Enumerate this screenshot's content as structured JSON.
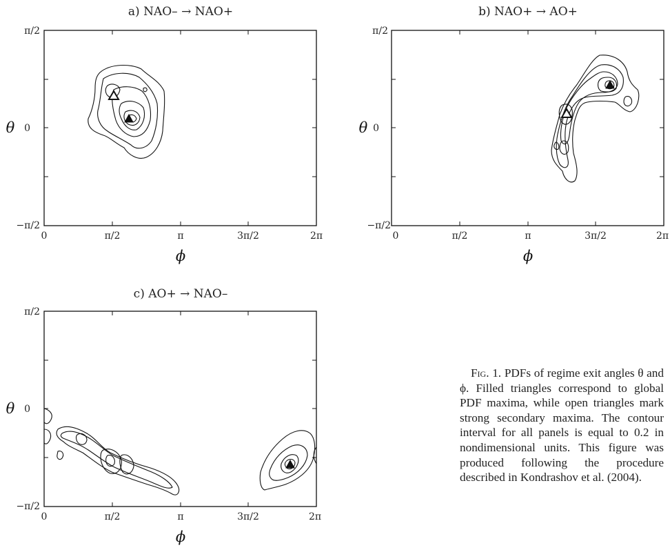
{
  "figure": {
    "panels": [
      {
        "title": "a)  NAO–  →  NAO+",
        "xlabel": "ϕ",
        "ylabel": "θ",
        "xticklabels": [
          "0",
          "π/2",
          "π",
          "3π/2",
          "2π"
        ],
        "yticklabels": [
          "π/2",
          "0",
          "−π/2"
        ]
      },
      {
        "title": "b)  NAO+  →  AO+",
        "xlabel": "ϕ",
        "ylabel": "θ",
        "xticklabels": [
          "0",
          "π/2",
          "π",
          "3π/2",
          "2π"
        ],
        "yticklabels": [
          "π/2",
          "0",
          "−π/2"
        ]
      },
      {
        "title": "c)  AO+  →  NAO–",
        "xlabel": "ϕ",
        "ylabel": "θ",
        "xticklabels": [
          "0",
          "π/2",
          "π",
          "3π/2",
          "2π"
        ],
        "yticklabels": [
          "π/2",
          "0",
          "−π/2"
        ]
      }
    ],
    "caption": {
      "label": "Fig. 1.",
      "text": "PDFs of regime exit angles θ and ϕ. Filled triangles correspond to global PDF maxima, while open triangles mark strong secondary maxima. The contour interval for all panels is equal to 0.2 in nondimensional units. This figure was produced following the procedure described in Kondrashov et al. (2004)."
    }
  },
  "chart_data": [
    {
      "type": "contour",
      "title": "a)  NAO–  →  NAO+",
      "xlabel": "ϕ",
      "ylabel": "θ",
      "xlim": [
        0,
        6.2832
      ],
      "ylim": [
        -1.5708,
        1.5708
      ],
      "contour_interval": 0.2,
      "global_max": {
        "x": 2.0,
        "y": 0.15,
        "marker": "filled-triangle"
      },
      "secondary_max": [
        {
          "x": 1.55,
          "y": 0.6,
          "marker": "open-triangle"
        }
      ]
    },
    {
      "type": "contour",
      "title": "b)  NAO+  →  AO+",
      "xlabel": "ϕ",
      "ylabel": "θ",
      "xlim": [
        0,
        6.2832
      ],
      "ylim": [
        -1.5708,
        1.5708
      ],
      "contour_interval": 0.2,
      "global_max": {
        "x": 4.95,
        "y": 0.75,
        "marker": "filled-triangle"
      },
      "secondary_max": [
        {
          "x": 3.6,
          "y": 0.25,
          "marker": "open-triangle"
        }
      ]
    },
    {
      "type": "contour",
      "title": "c)  AO+  →  NAO–",
      "xlabel": "ϕ",
      "ylabel": "θ",
      "xlim": [
        0,
        6.2832
      ],
      "ylim": [
        -1.5708,
        1.5708
      ],
      "contour_interval": 0.2,
      "global_max": {
        "x": 5.7,
        "y": -0.57,
        "marker": "filled-triangle"
      },
      "secondary_max": []
    }
  ]
}
